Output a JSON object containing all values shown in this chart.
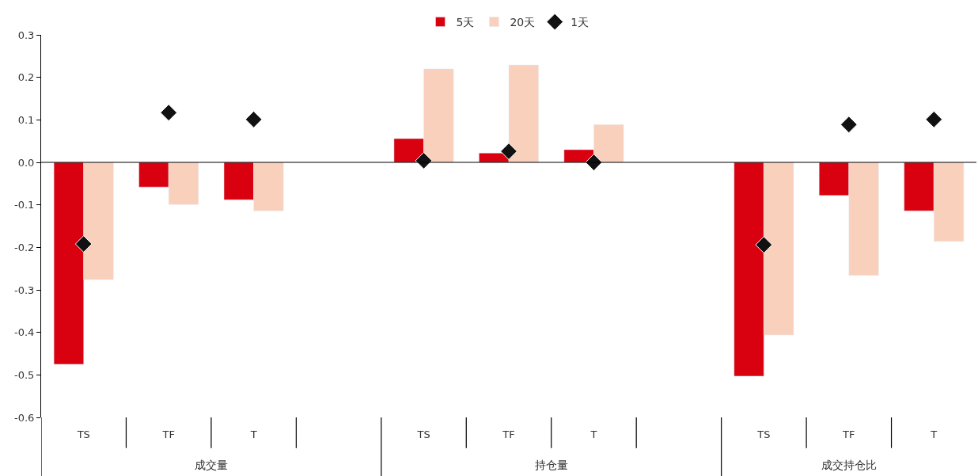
{
  "chart_data": {
    "type": "bar",
    "categories": [
      "TS",
      "TF",
      "T",
      null,
      "TS",
      "TF",
      "T",
      null,
      "TS",
      "TF",
      "T"
    ],
    "series": [
      {
        "name": "5天",
        "color": "#d9000f",
        "values": [
          -0.475,
          -0.058,
          -0.088,
          null,
          0.056,
          0.022,
          0.03,
          null,
          -0.503,
          -0.078,
          -0.114
        ]
      },
      {
        "name": "20天",
        "color": "#f9d0bb",
        "values": [
          -0.276,
          -0.099,
          -0.114,
          null,
          0.22,
          0.229,
          0.089,
          null,
          -0.406,
          -0.266,
          -0.186
        ]
      },
      {
        "name": "1天",
        "color": "#111111",
        "type": "scatter",
        "marker": "diamond",
        "values": [
          -0.192,
          0.117,
          0.101,
          null,
          0.004,
          0.026,
          0.0,
          null,
          -0.194,
          0.089,
          0.101
        ]
      }
    ],
    "annotations": [
      "成交量",
      "持仓量",
      "成交持仓比"
    ],
    "ylim": [
      -0.6,
      0.3
    ],
    "yticks": [
      -0.6,
      -0.5,
      -0.4,
      -0.3,
      -0.2,
      -0.1,
      {
        "value": 0,
        "label": "0.0"
      },
      0.1,
      0.2,
      0.3
    ],
    "legend": "top"
  }
}
